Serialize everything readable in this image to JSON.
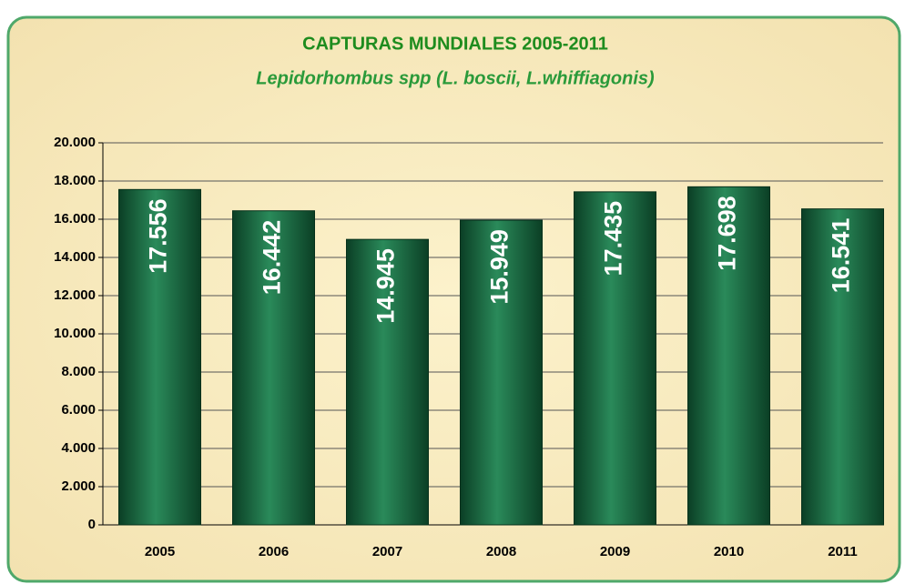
{
  "chart_data": {
    "type": "bar",
    "title": "CAPTURAS MUNDIALES 2005-2011",
    "subtitle": "Lepidorhombus spp (L. boscii, L.whiffiagonis)",
    "categories": [
      "2005",
      "2006",
      "2007",
      "2008",
      "2009",
      "2010",
      "2011"
    ],
    "values": [
      17556,
      16442,
      14945,
      15949,
      17435,
      17698,
      16541
    ],
    "value_labels": [
      "17.556",
      "16.442",
      "14.945",
      "15.949",
      "17.435",
      "17.698",
      "16.541"
    ],
    "color": "#2a8a5a",
    "ylim": [
      0,
      20000
    ],
    "yticks": [
      0,
      {
        "value": 2000,
        "label": "2.000"
      },
      {
        "value": 4000,
        "label": "4.000"
      },
      {
        "value": 6000,
        "label": "6.000"
      },
      {
        "value": 8000,
        "label": "8.000"
      },
      {
        "value": 10000,
        "label": "10.000"
      },
      {
        "value": 12000,
        "label": "12.000"
      },
      {
        "value": 14000,
        "label": "14.000"
      },
      {
        "value": 16000,
        "label": "16.000"
      },
      {
        "value": 18000,
        "label": "18.000"
      },
      {
        "value": 20000,
        "label": "20.000"
      }
    ],
    "grid": true
  }
}
